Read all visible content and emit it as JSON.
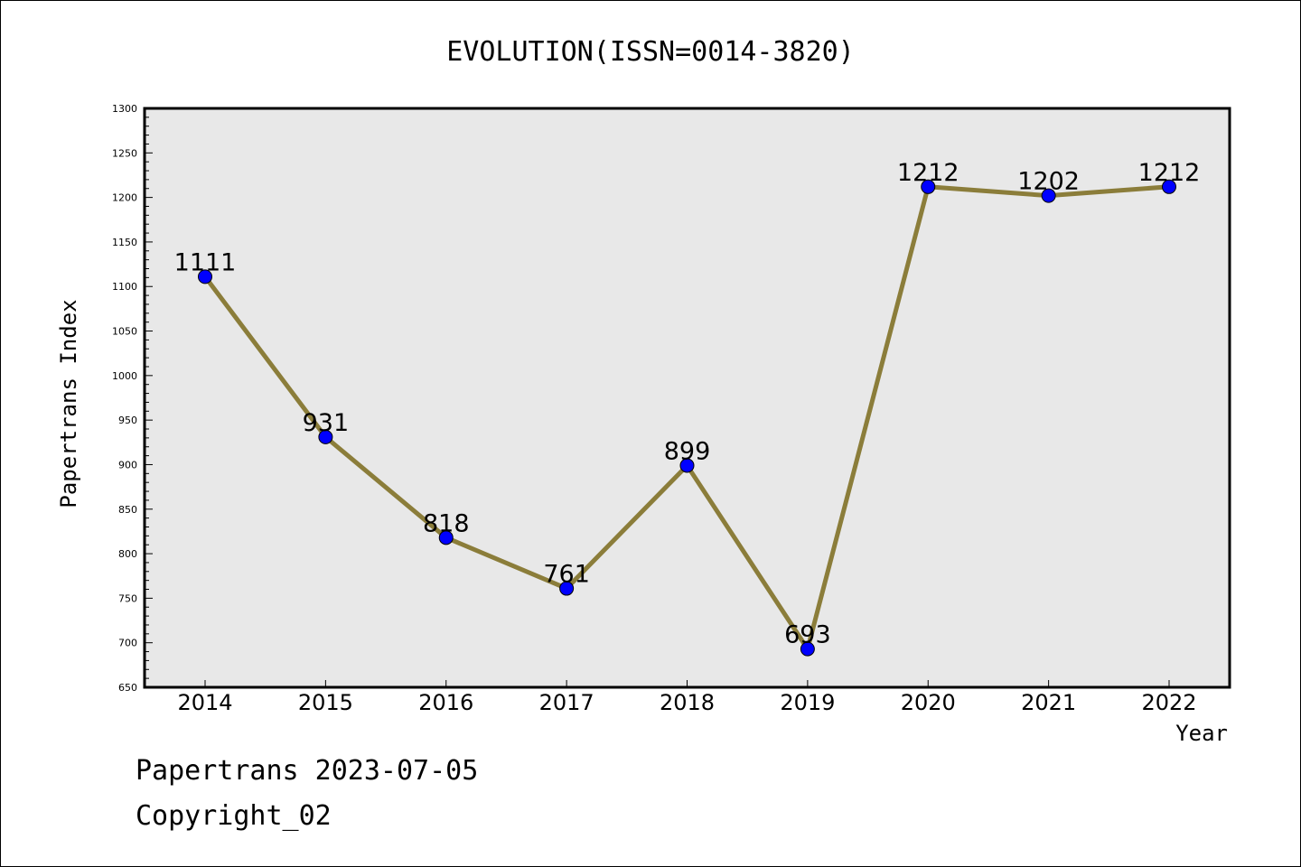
{
  "chart_data": {
    "type": "line",
    "title": "EVOLUTION(ISSN=0014-3820)",
    "xlabel": "Year",
    "ylabel": "Papertrans Index",
    "categories": [
      "2014",
      "2015",
      "2016",
      "2017",
      "2018",
      "2019",
      "2020",
      "2021",
      "2022"
    ],
    "series": [
      {
        "values": [
          1111,
          931,
          818,
          761,
          899,
          693,
          1212,
          1202,
          1212
        ],
        "line_color": "#8b7d3a",
        "marker_color": "#0000ff"
      }
    ],
    "ylim": [
      650,
      1300
    ],
    "yticks": [
      650,
      700,
      750,
      800,
      850,
      900,
      950,
      1000,
      1050,
      1100,
      1150,
      1200,
      1250,
      1300
    ],
    "yminor_step": 10,
    "grid": false,
    "data_labels": true,
    "plot_background": "#e8e8e8"
  },
  "footer": {
    "line1": "Papertrans 2023-07-05",
    "line2": "Copyright_02"
  }
}
